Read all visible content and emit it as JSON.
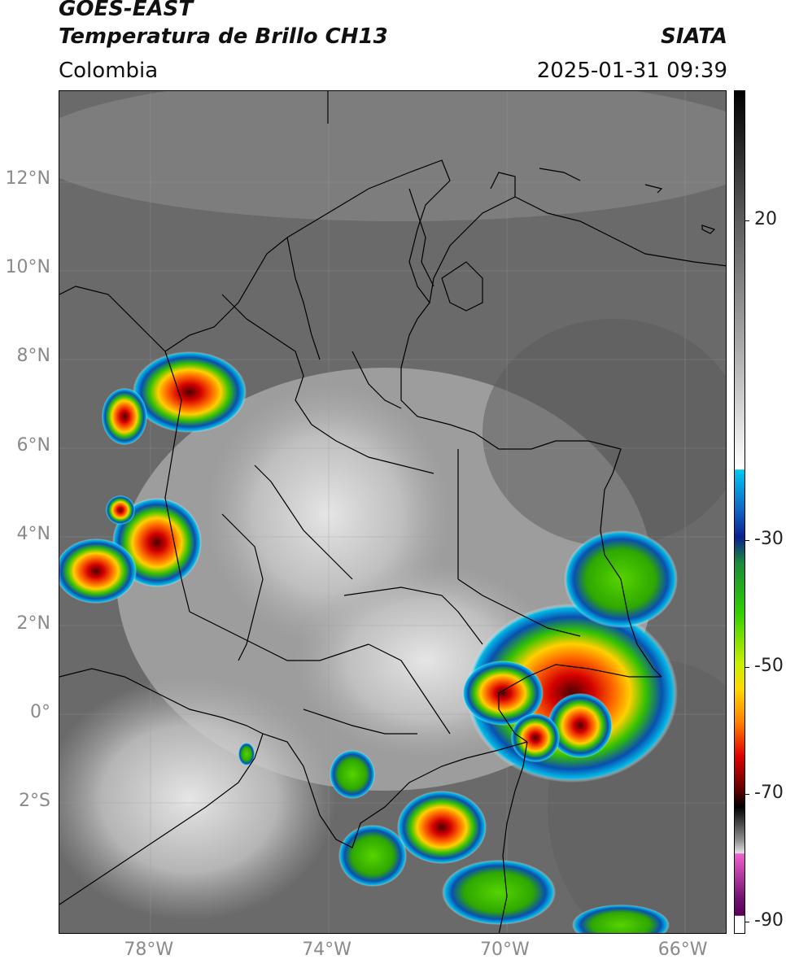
{
  "header": {
    "satellite": "GOES-EAST",
    "product": "Temperatura de Brillo CH13",
    "organization": "SIATA",
    "region": "Colombia",
    "timestamp": "2025-01-31 09:39"
  },
  "map": {
    "lat_ticks": [
      {
        "label": "12°N",
        "lat": 12
      },
      {
        "label": "10°N",
        "lat": 10
      },
      {
        "label": "8°N",
        "lat": 8
      },
      {
        "label": "6°N",
        "lat": 6
      },
      {
        "label": "4°N",
        "lat": 4
      },
      {
        "label": "2°N",
        "lat": 2
      },
      {
        "label": "0°",
        "lat": 0
      },
      {
        "label": "2°S",
        "lat": -2
      }
    ],
    "lon_ticks": [
      {
        "label": "78°W",
        "lon": -78
      },
      {
        "label": "74°W",
        "lon": -74
      },
      {
        "label": "70°W",
        "lon": -70
      },
      {
        "label": "66°W",
        "lon": -66
      }
    ]
  },
  "colorbar": {
    "ticks": [
      {
        "label": "20",
        "value": 20
      },
      {
        "label": "-30",
        "value": -30
      },
      {
        "label": "-50",
        "value": -50
      },
      {
        "label": "-70",
        "value": -70
      },
      {
        "label": "-90",
        "value": -90
      }
    ]
  }
}
